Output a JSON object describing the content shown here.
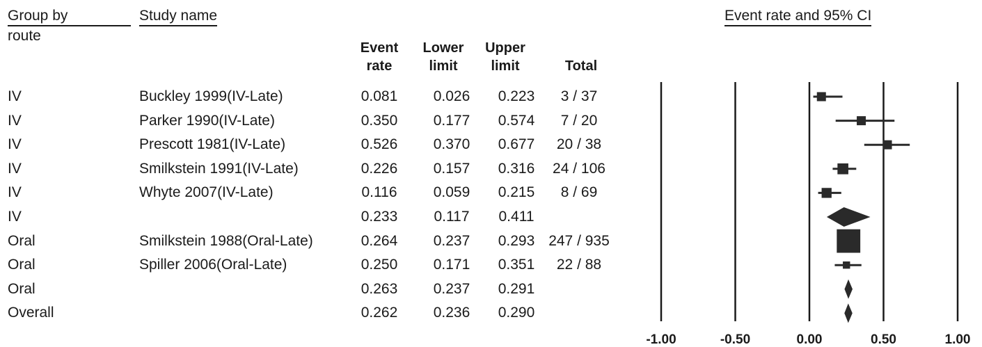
{
  "headers": {
    "group_by": "Group by",
    "route": "route",
    "study_name": "Study name",
    "event_rate_l1": "Event",
    "event_rate_l2": "rate",
    "lower_l1": "Lower",
    "lower_l2": "limit",
    "upper_l1": "Upper",
    "upper_l2": "limit",
    "total": "Total",
    "plot_title": "Event rate and 95% CI"
  },
  "chart_data": {
    "type": "forest",
    "title": "Event rate and 95% CI",
    "xlim": [
      -1.0,
      1.0
    ],
    "xticks": [
      "-1.00",
      "-0.50",
      "0.00",
      "0.50",
      "1.00"
    ],
    "xtick_values": [
      -1.0,
      -0.5,
      0.0,
      0.5,
      1.0
    ],
    "rows": [
      {
        "group": "IV",
        "study": "Buckley 1999(IV-Late)",
        "rate": "0.081",
        "lower": "0.026",
        "upper": "0.223",
        "total": "3 / 37",
        "marker": "square",
        "weight": 1.0
      },
      {
        "group": "IV",
        "study": "Parker 1990(IV-Late)",
        "rate": "0.350",
        "lower": "0.177",
        "upper": "0.574",
        "total": "7 / 20",
        "marker": "square",
        "weight": 1.0
      },
      {
        "group": "IV",
        "study": "Prescott 1981(IV-Late)",
        "rate": "0.526",
        "lower": "0.370",
        "upper": "0.677",
        "total": "20 / 38",
        "marker": "square",
        "weight": 1.0
      },
      {
        "group": "IV",
        "study": "Smilkstein 1991(IV-Late)",
        "rate": "0.226",
        "lower": "0.157",
        "upper": "0.316",
        "total": "24 / 106",
        "marker": "square",
        "weight": 1.2
      },
      {
        "group": "IV",
        "study": "Whyte 2007(IV-Late)",
        "rate": "0.116",
        "lower": "0.059",
        "upper": "0.215",
        "total": "8 / 69",
        "marker": "square",
        "weight": 1.1
      },
      {
        "group": "IV",
        "study": "",
        "rate": "0.233",
        "lower": "0.117",
        "upper": "0.411",
        "total": "",
        "marker": "diamond",
        "weight": 1.0
      },
      {
        "group": "Oral",
        "study": "Smilkstein 1988(Oral-Late)",
        "rate": "0.264",
        "lower": "0.237",
        "upper": "0.293",
        "total": "247 / 935",
        "marker": "square",
        "weight": 2.6
      },
      {
        "group": "Oral",
        "study": "Spiller 2006(Oral-Late)",
        "rate": "0.250",
        "lower": "0.171",
        "upper": "0.351",
        "total": "22 / 88",
        "marker": "square",
        "weight": 0.8
      },
      {
        "group": "Oral",
        "study": "",
        "rate": "0.263",
        "lower": "0.237",
        "upper": "0.291",
        "total": "",
        "marker": "diamond",
        "weight": 1.0
      },
      {
        "group": "Overall",
        "study": "",
        "rate": "0.262",
        "lower": "0.236",
        "upper": "0.290",
        "total": "",
        "marker": "diamond",
        "weight": 1.0
      }
    ]
  }
}
